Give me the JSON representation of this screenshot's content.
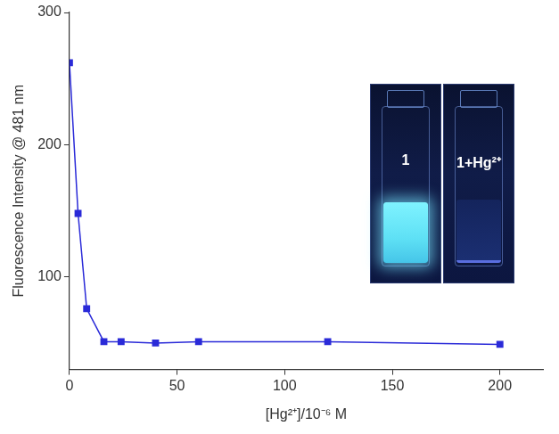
{
  "chart_data": {
    "type": "line",
    "x_label": "[Hg²⁺]/10⁻⁶ M",
    "y_label": "Fluorescence Intensity @ 481 nm",
    "x": [
      0,
      4,
      8,
      16,
      24,
      40,
      60,
      120,
      200
    ],
    "series": [
      {
        "name": "1",
        "color": "#2a2ad8",
        "marker": "square",
        "line_style": "solid",
        "values": [
          262,
          148,
          76,
          51,
          51,
          50,
          51,
          51,
          49
        ]
      }
    ],
    "xlim": [
      0,
      220
    ],
    "xticks": [
      0,
      50,
      100,
      150,
      200
    ],
    "ylim": [
      30,
      300
    ],
    "yticks": [
      100,
      200,
      300
    ],
    "grid": false,
    "annotations": [
      {
        "text": "1"
      },
      {
        "text": "1+Hg²⁺"
      }
    ]
  }
}
